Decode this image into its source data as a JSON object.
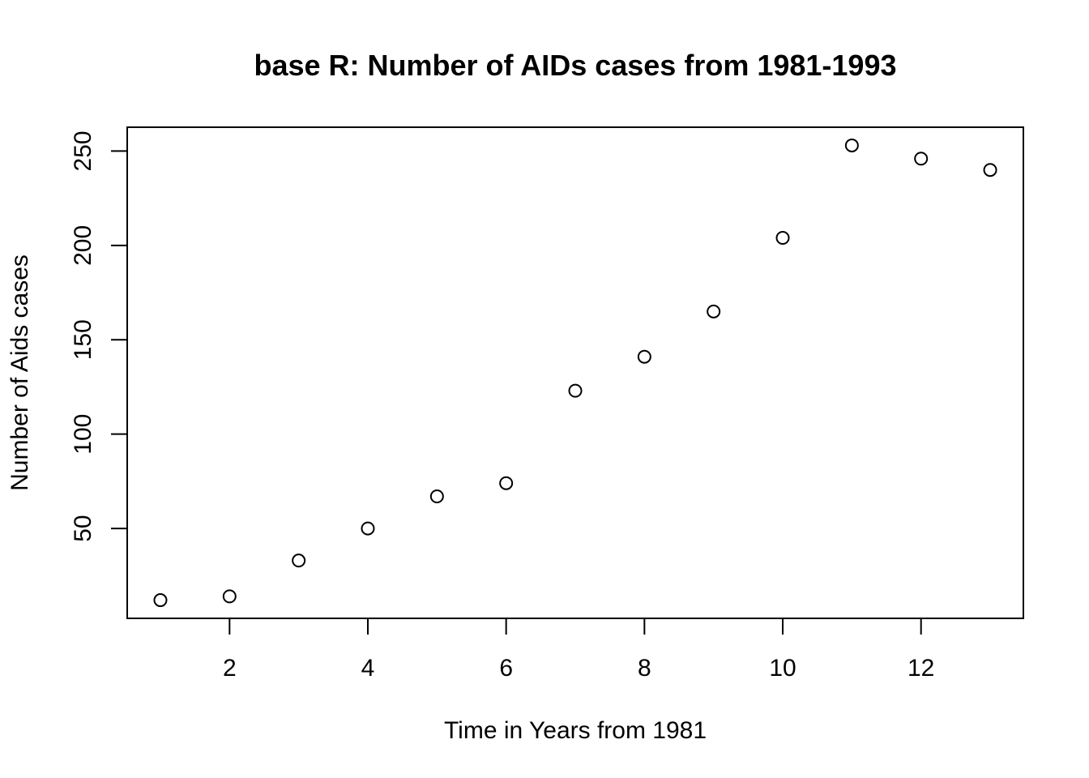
{
  "chart_data": {
    "type": "scatter",
    "title": "base R: Number of AIDs cases from 1981-1993",
    "xlabel": "Time in Years from 1981",
    "ylabel": "Number of Aids cases",
    "x": [
      1,
      2,
      3,
      4,
      5,
      6,
      7,
      8,
      9,
      10,
      11,
      12,
      13
    ],
    "y": [
      12,
      14,
      33,
      50,
      67,
      74,
      123,
      141,
      165,
      204,
      253,
      246,
      240
    ],
    "xlim": [
      0.52,
      13.48
    ],
    "ylim": [
      2.36,
      262.64
    ],
    "x_ticks": [
      2,
      4,
      6,
      8,
      10,
      12
    ],
    "y_ticks": [
      50,
      100,
      150,
      200,
      250
    ],
    "x_tick_labels": [
      "2",
      "4",
      "6",
      "8",
      "10",
      "12"
    ],
    "y_tick_labels": [
      "50",
      "100",
      "150",
      "200",
      "250"
    ],
    "marker": "open-circle",
    "grid": false,
    "colors": {
      "points": "#000000",
      "axes": "#000000",
      "background": "#ffffff"
    }
  }
}
